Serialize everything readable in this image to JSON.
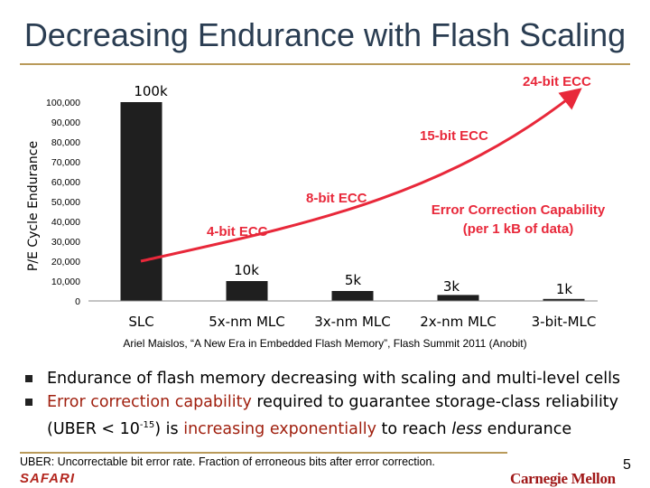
{
  "slide": {
    "title": "Decreasing Endurance with Flash Scaling",
    "caption": "Ariel Maislos, “A New Era in Embedded Flash Memory”, Flash Summit 2011 (Anobit)",
    "bullet1": "Endurance of flash memory decreasing with scaling and multi-level cells",
    "bullet2_a": "Error correction capability",
    "bullet2_b": " required to guarantee storage-class reliability",
    "bullet2_c": "(UBER < 10",
    "bullet2_sup": "-15",
    "bullet2_d": ") is ",
    "bullet2_e": "increasing exponentially",
    "bullet2_f": " to reach ",
    "bullet2_g": "less",
    "bullet2_h": " endurance",
    "footnote": "UBER: Uncorrectable bit error rate. Fraction of erroneous bits after error correction.",
    "footer_left": "SAFARI",
    "footer_right": "Carnegie Mellon",
    "page_number": "5"
  },
  "chart_data": {
    "type": "bar",
    "ylabel": "P/E Cycle Endurance",
    "ylim": [
      0,
      100000
    ],
    "yticks": [
      "0",
      "10,000",
      "20,000",
      "30,000",
      "40,000",
      "50,000",
      "60,000",
      "70,000",
      "80,000",
      "90,000",
      "100,000"
    ],
    "categories": [
      "SLC",
      "5x-nm MLC",
      "3x-nm MLC",
      "2x-nm MLC",
      "3-bit-MLC"
    ],
    "values": [
      100000,
      10000,
      5000,
      3000,
      1000
    ],
    "data_labels": [
      "100k",
      "10k",
      "5k",
      "3k",
      "1k"
    ],
    "ecc_annotations": [
      "4-bit ECC",
      "8-bit ECC",
      "15-bit ECC",
      "24-bit ECC"
    ],
    "ecc_note": [
      "Error Correction Capability",
      "(per 1 kB of data)"
    ],
    "colors": {
      "bar": "#1f1f1f",
      "trend": "#e8283a",
      "note": "#e8283a"
    }
  }
}
